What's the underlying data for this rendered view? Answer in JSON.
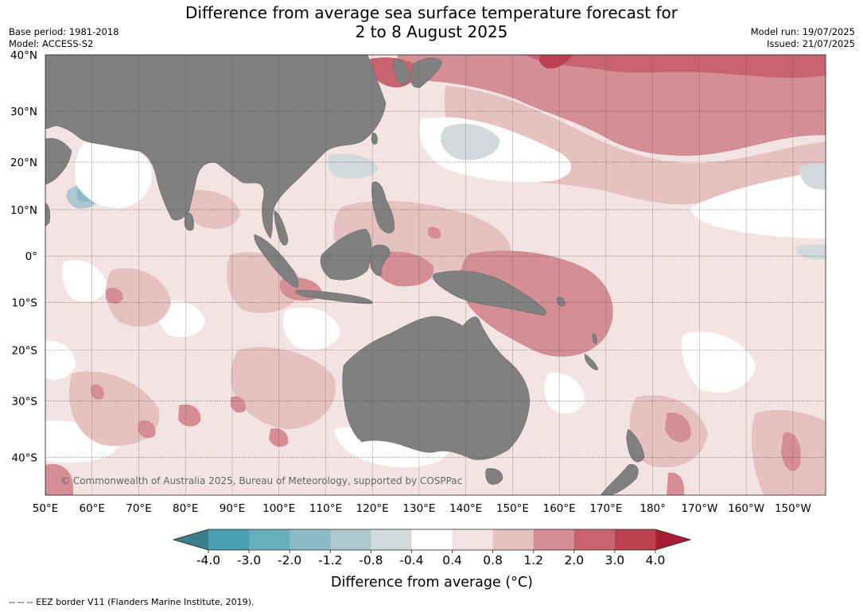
{
  "title": {
    "line1": "Difference from average sea surface temperature forecast for",
    "line2": "2 to 8 August 2025"
  },
  "meta": {
    "base_period": "Base period: 1981-2018",
    "model": "Model: ACCESS-S2",
    "model_run": "Model run: 19/07/2025",
    "issued": "Issued: 21/07/2025"
  },
  "map": {
    "extent": {
      "lon_min": 50,
      "lon_max": 217,
      "lat_min": -46,
      "lat_max": 40
    },
    "lat_ticks": [
      {
        "lat": 40,
        "label": "40°N"
      },
      {
        "lat": 30,
        "label": "30°N"
      },
      {
        "lat": 20,
        "label": "20°N"
      },
      {
        "lat": 10,
        "label": "10°N"
      },
      {
        "lat": 0,
        "label": "0°"
      },
      {
        "lat": -10,
        "label": "10°S"
      },
      {
        "lat": -20,
        "label": "20°S"
      },
      {
        "lat": -30,
        "label": "30°S"
      },
      {
        "lat": -40,
        "label": "40°S"
      }
    ],
    "lon_ticks": [
      {
        "lon": 50,
        "label": "50°E"
      },
      {
        "lon": 60,
        "label": "60°E"
      },
      {
        "lon": 70,
        "label": "70°E"
      },
      {
        "lon": 80,
        "label": "80°E"
      },
      {
        "lon": 90,
        "label": "90°E"
      },
      {
        "lon": 100,
        "label": "100°E"
      },
      {
        "lon": 110,
        "label": "110°E"
      },
      {
        "lon": 120,
        "label": "120°E"
      },
      {
        "lon": 130,
        "label": "130°E"
      },
      {
        "lon": 140,
        "label": "140°E"
      },
      {
        "lon": 150,
        "label": "150°E"
      },
      {
        "lon": 160,
        "label": "160°E"
      },
      {
        "lon": 170,
        "label": "170°E"
      },
      {
        "lon": 180,
        "label": "180°"
      },
      {
        "lon": 190,
        "label": "170°W"
      },
      {
        "lon": 200,
        "label": "160°W"
      },
      {
        "lon": 210,
        "label": "150°W"
      }
    ],
    "ocean_color": "#f3e4e3",
    "land_color": "#808080",
    "copyright": "© Commonwealth of Australia 2025, Bureau of Meteorology, supported by COSPPac"
  },
  "colorbar": {
    "title": "Difference from average (°C)",
    "tick_labels": [
      "-4.0",
      "-3.0",
      "-2.0",
      "-1.2",
      "-0.8",
      "-0.4",
      "0.4",
      "0.8",
      "1.2",
      "2.0",
      "3.0",
      "4.0"
    ],
    "colors": [
      "#3b7f8a",
      "#4aa0b0",
      "#69aebb",
      "#8cbac5",
      "#aec8cd",
      "#d2dadc",
      "#ffffff",
      "#f3e4e3",
      "#e5c1bf",
      "#d58e96",
      "#c8646f",
      "#bb4050",
      "#a81c33"
    ]
  },
  "footer": "--  --  -- EEZ border V11 (Flanders Marine Institute, 2019)."
}
